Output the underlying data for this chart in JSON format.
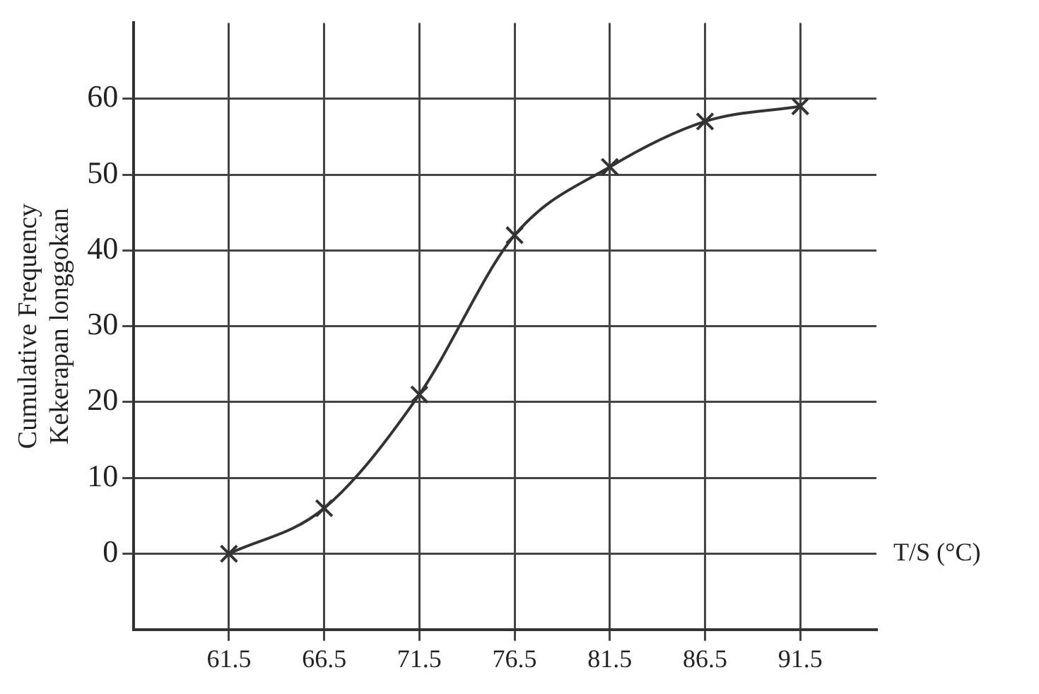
{
  "chart_data": {
    "type": "line",
    "xlabel": "T/S (°C)",
    "ylabel": [
      "Cumulative Frequency",
      "Kekerapan longgokan"
    ],
    "x": [
      61.5,
      66.5,
      71.5,
      76.5,
      81.5,
      86.5,
      91.5
    ],
    "series": [
      {
        "color": "#333333",
        "values": [
          0,
          6,
          21,
          42,
          51,
          57,
          59
        ]
      }
    ],
    "xlim": [
      56.5,
      95.5
    ],
    "xticks": [
      61.5,
      66.5,
      71.5,
      76.5,
      81.5,
      86.5,
      91.5
    ],
    "ylim": [
      -10,
      70
    ],
    "yticks": [
      0,
      10,
      20,
      30,
      40,
      50,
      60
    ],
    "grid": true,
    "marker": "cross",
    "line_style": "solid",
    "legend": false
  }
}
